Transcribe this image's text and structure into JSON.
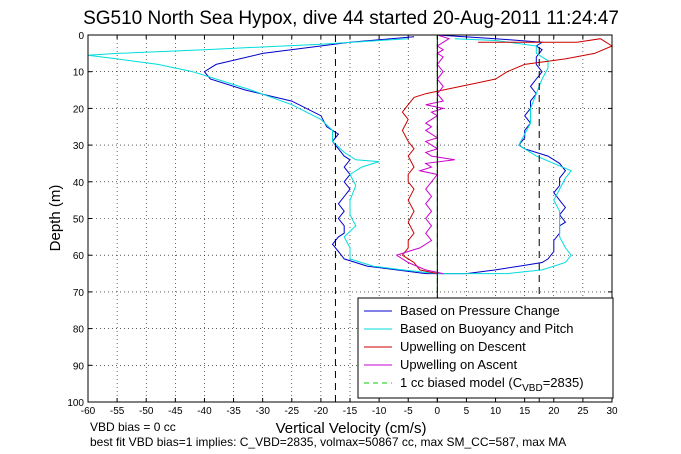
{
  "chart_data": {
    "type": "line",
    "title": "SG510 North Sea Hypox, dive 44 started 20-Aug-2011 11:24:47",
    "xlabel": "Vertical Velocity (cm/s)",
    "ylabel": "Depth (m)",
    "xlim": [
      -60,
      30
    ],
    "ylim": [
      0,
      100
    ],
    "y_reversed": true,
    "xticks": [
      -60,
      -55,
      -50,
      -45,
      -40,
      -35,
      -30,
      -25,
      -20,
      -15,
      -10,
      -5,
      0,
      5,
      10,
      15,
      20,
      25,
      30
    ],
    "yticks": [
      0,
      10,
      20,
      30,
      40,
      50,
      60,
      70,
      80,
      90,
      100
    ],
    "grid": true,
    "legend_position": "bottom-right",
    "series": [
      {
        "name": "Based on Pressure Change",
        "color": "#0000cc",
        "style": "solid",
        "points": [
          [
            -4,
            0.5
          ],
          [
            -15,
            2
          ],
          [
            -30,
            5
          ],
          [
            -38,
            8
          ],
          [
            -40,
            10
          ],
          [
            -39,
            12
          ],
          [
            -33,
            15
          ],
          [
            -25,
            18
          ],
          [
            -20,
            22
          ],
          [
            -19,
            25
          ],
          [
            -17,
            27
          ],
          [
            -18,
            29
          ],
          [
            -17,
            31
          ],
          [
            -16,
            33
          ],
          [
            -15,
            34
          ],
          [
            -16,
            36
          ],
          [
            -15,
            38
          ],
          [
            -16,
            40
          ],
          [
            -15,
            42
          ],
          [
            -16,
            44
          ],
          [
            -17,
            46
          ],
          [
            -16,
            48
          ],
          [
            -17,
            50
          ],
          [
            -16,
            52
          ],
          [
            -16,
            54
          ],
          [
            -17,
            55
          ],
          [
            -18,
            57
          ],
          [
            -17,
            59
          ],
          [
            -16,
            61
          ],
          [
            -12,
            63
          ],
          [
            -7,
            64
          ],
          [
            -2,
            65
          ],
          [
            5,
            65
          ],
          [
            10,
            64
          ],
          [
            14,
            63
          ],
          [
            18,
            62
          ],
          [
            19,
            61
          ],
          [
            20,
            59
          ],
          [
            20,
            56
          ],
          [
            21,
            54
          ],
          [
            21,
            52
          ],
          [
            22,
            51
          ],
          [
            21,
            49
          ],
          [
            22,
            47
          ],
          [
            21,
            45
          ],
          [
            20,
            43
          ],
          [
            21,
            41
          ],
          [
            21,
            39
          ],
          [
            22,
            37
          ],
          [
            21,
            35
          ],
          [
            19,
            33
          ],
          [
            15,
            31
          ],
          [
            14,
            30
          ],
          [
            15,
            28
          ],
          [
            15,
            26
          ],
          [
            16,
            24
          ],
          [
            15,
            22
          ],
          [
            16,
            20
          ],
          [
            16,
            18
          ],
          [
            17,
            16
          ],
          [
            16,
            14
          ],
          [
            17,
            12
          ],
          [
            18,
            10
          ],
          [
            17,
            8
          ],
          [
            17,
            6
          ],
          [
            18,
            4
          ],
          [
            17,
            3
          ],
          [
            18,
            2
          ],
          [
            10,
            1
          ],
          [
            0,
            0
          ]
        ]
      },
      {
        "name": "Based on Buoyancy and Pitch",
        "color": "#00dddd",
        "style": "solid",
        "points": [
          [
            -5,
            1
          ],
          [
            -20,
            2.5
          ],
          [
            -40,
            4
          ],
          [
            -55,
            5
          ],
          [
            -60,
            5.5
          ],
          [
            -55,
            6.5
          ],
          [
            -48,
            8
          ],
          [
            -42,
            10
          ],
          [
            -38,
            12
          ],
          [
            -32,
            15
          ],
          [
            -25,
            19
          ],
          [
            -20,
            23
          ],
          [
            -18,
            26
          ],
          [
            -18,
            29
          ],
          [
            -16,
            32
          ],
          [
            -14,
            34
          ],
          [
            -10,
            34.5
          ],
          [
            -13,
            36
          ],
          [
            -15,
            38
          ],
          [
            -14,
            41
          ],
          [
            -15,
            45
          ],
          [
            -15,
            49
          ],
          [
            -14,
            52
          ],
          [
            -16,
            55
          ],
          [
            -15,
            58
          ],
          [
            -15,
            61
          ],
          [
            -11,
            63
          ],
          [
            -6,
            64
          ],
          [
            0,
            65
          ],
          [
            6,
            65
          ],
          [
            12,
            65
          ],
          [
            18,
            64
          ],
          [
            22,
            62
          ],
          [
            23,
            60
          ],
          [
            22,
            58
          ],
          [
            21,
            55
          ],
          [
            21,
            52
          ],
          [
            21,
            48
          ],
          [
            20,
            45
          ],
          [
            21,
            42
          ],
          [
            22,
            39
          ],
          [
            23,
            37
          ],
          [
            20,
            35
          ],
          [
            17,
            33
          ],
          [
            15,
            31
          ],
          [
            14,
            30
          ],
          [
            15,
            27
          ],
          [
            16,
            24
          ],
          [
            16,
            20
          ],
          [
            17,
            16
          ],
          [
            18,
            12
          ],
          [
            19,
            9
          ],
          [
            19,
            7
          ],
          [
            17,
            5
          ],
          [
            17,
            3
          ],
          [
            10,
            1.5
          ],
          [
            3,
            1
          ]
        ]
      },
      {
        "name": "Upwelling on Descent",
        "color": "#cc0000",
        "style": "solid",
        "points": [
          [
            7,
            2
          ],
          [
            15,
            2
          ],
          [
            24,
            2
          ],
          [
            28,
            1
          ],
          [
            30,
            3
          ],
          [
            27,
            5
          ],
          [
            22,
            6.5
          ],
          [
            15,
            8
          ],
          [
            12,
            10
          ],
          [
            10,
            12
          ],
          [
            7,
            13
          ],
          [
            4,
            14
          ],
          [
            1,
            15
          ],
          [
            -2,
            16
          ],
          [
            -4,
            17
          ],
          [
            -5,
            19
          ],
          [
            -6,
            21
          ],
          [
            -5,
            23
          ],
          [
            -6,
            26
          ],
          [
            -5,
            29
          ],
          [
            -4,
            31
          ],
          [
            -5,
            33
          ],
          [
            -4,
            36
          ],
          [
            -5,
            38
          ],
          [
            -5,
            40
          ],
          [
            -4,
            42
          ],
          [
            -5,
            45
          ],
          [
            -4,
            48
          ],
          [
            -5,
            51
          ],
          [
            -4,
            54
          ],
          [
            -5,
            56
          ],
          [
            -5,
            58
          ],
          [
            -6,
            60
          ],
          [
            -4,
            62
          ],
          [
            -3,
            64
          ],
          [
            0,
            65
          ]
        ]
      },
      {
        "name": "Upwelling on Ascent",
        "color": "#cc00cc",
        "style": "solid",
        "points": [
          [
            1,
            65
          ],
          [
            -2,
            64
          ],
          [
            -5,
            62
          ],
          [
            -7,
            60
          ],
          [
            -5,
            59
          ],
          [
            -3,
            58
          ],
          [
            -1,
            56
          ],
          [
            -2,
            54
          ],
          [
            -1,
            52
          ],
          [
            -2,
            50
          ],
          [
            -1,
            48
          ],
          [
            -2,
            46
          ],
          [
            -1,
            44
          ],
          [
            -2,
            42
          ],
          [
            -1,
            40
          ],
          [
            0,
            38
          ],
          [
            -3,
            37
          ],
          [
            -1,
            36
          ],
          [
            -2,
            35
          ],
          [
            3,
            34
          ],
          [
            -1,
            33
          ],
          [
            -2,
            32
          ],
          [
            0,
            31
          ],
          [
            -1,
            30
          ],
          [
            -2,
            29
          ],
          [
            0,
            28
          ],
          [
            -1,
            27
          ],
          [
            -2,
            26
          ],
          [
            -1,
            25
          ],
          [
            -2,
            24
          ],
          [
            -1,
            23
          ],
          [
            0,
            22
          ],
          [
            -1,
            21
          ],
          [
            1,
            20
          ],
          [
            -2,
            19
          ],
          [
            1,
            18
          ],
          [
            0,
            16
          ],
          [
            1,
            14
          ],
          [
            0,
            12
          ],
          [
            1,
            10
          ],
          [
            0,
            8
          ],
          [
            1,
            6
          ],
          [
            0,
            5
          ],
          [
            1,
            4
          ],
          [
            0,
            3
          ],
          [
            1,
            2
          ],
          [
            2,
            1
          ],
          [
            0,
            0
          ]
        ]
      },
      {
        "name": "1 cc biased model (C_VBD=2835)",
        "legend_main": "1 cc biased model (C",
        "legend_sub": "VBD",
        "legend_tail": "=2835)",
        "color": "#00cc00",
        "style": "dashed",
        "points": [
          [
            0,
            0
          ],
          [
            0,
            100
          ]
        ]
      }
    ],
    "reference_lines": {
      "zero_line_x": 0,
      "dashed_x": [
        -17.5,
        17.5
      ]
    },
    "annotations": {
      "vbd_bias": "VBD bias = 0 cc",
      "best_fit": "best fit VBD bias=1 implies: C_VBD=2835, volmax=50867 cc, max SM_CC=587, max MA"
    }
  }
}
